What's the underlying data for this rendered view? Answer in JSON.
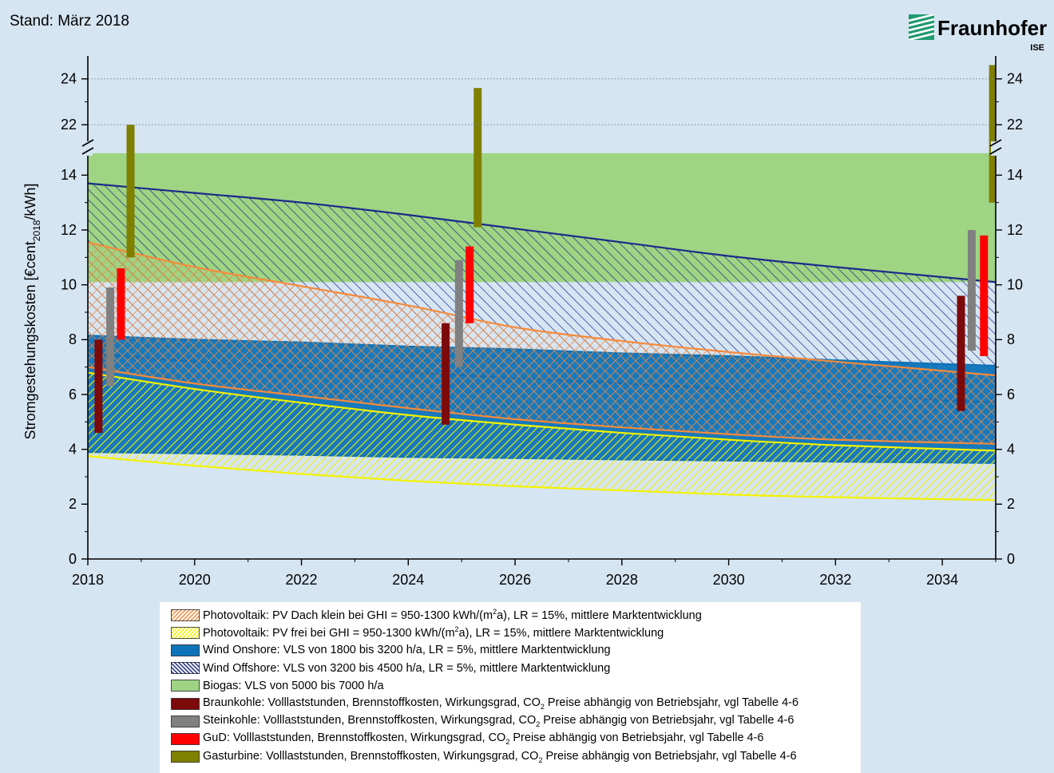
{
  "header": {
    "stand": "Stand: März 2018"
  },
  "logo": {
    "name": "Fraunhofer",
    "sub": "ISE"
  },
  "colors": {
    "background": "#d6e5f2",
    "pv_roof": "#f58a3a",
    "pv_free": "#f2f200",
    "wind_onshore": "#0e73b8",
    "wind_offshore": "#1c2a8a",
    "biogas": "#9fd483",
    "braunkohle": "#7d0a0a",
    "steinkohle": "#808080",
    "gud": "#ff0000",
    "gasturbine": "#7f7f00"
  },
  "chart_data": {
    "type": "area",
    "ylabel_main": "Stromgestehungskosten [€cent",
    "ylabel_sub": "2018",
    "ylabel_tail": "/kWh]",
    "xlim": [
      2018,
      2035
    ],
    "ylim_lower": [
      0,
      15
    ],
    "ylim_upper": [
      21,
      25
    ],
    "axis_break_between": [
      15,
      21
    ],
    "x_ticks": [
      "2018",
      "2020",
      "2022",
      "2024",
      "2026",
      "2028",
      "2030",
      "2032",
      "2034"
    ],
    "y_ticks": [
      "0",
      "2",
      "4",
      "6",
      "8",
      "10",
      "12",
      "14",
      "22",
      "24"
    ],
    "grid": "upper panel dotted only",
    "x": [
      2018,
      2020,
      2022,
      2024,
      2026,
      2028,
      2030,
      2032,
      2035
    ],
    "bands": [
      {
        "name": "biogas",
        "style": "solid",
        "low": [
          10.1,
          10.1,
          10.1,
          10.1,
          10.1,
          10.1,
          10.1,
          10.1,
          10.1
        ],
        "high": [
          14.8,
          14.8,
          14.8,
          14.8,
          14.8,
          14.8,
          14.8,
          14.8,
          14.8
        ]
      },
      {
        "name": "wind_offshore",
        "style": "hatch",
        "low": [
          7.5,
          7.2,
          7.0,
          6.8,
          6.6,
          6.4,
          6.2,
          6.0,
          5.7
        ],
        "high": [
          13.7,
          13.35,
          13.0,
          12.55,
          12.05,
          11.55,
          11.05,
          10.65,
          10.1
        ]
      },
      {
        "name": "wind_onshore",
        "style": "solid",
        "low": [
          3.9,
          3.85,
          3.8,
          3.72,
          3.68,
          3.63,
          3.59,
          3.55,
          3.5
        ],
        "high": [
          8.15,
          8.0,
          7.9,
          7.75,
          7.65,
          7.5,
          7.4,
          7.25,
          7.05
        ]
      },
      {
        "name": "pv_free",
        "style": "hatch",
        "low": [
          3.75,
          3.4,
          3.1,
          2.85,
          2.65,
          2.5,
          2.35,
          2.25,
          2.15
        ],
        "high": [
          6.8,
          6.2,
          5.7,
          5.25,
          4.9,
          4.6,
          4.35,
          4.15,
          3.95
        ]
      },
      {
        "name": "pv_roof",
        "style": "hatch",
        "low": [
          7.0,
          6.4,
          5.95,
          5.5,
          5.1,
          4.8,
          4.55,
          4.35,
          4.2
        ],
        "high": [
          11.55,
          10.65,
          9.95,
          9.25,
          8.45,
          7.95,
          7.55,
          7.2,
          6.7
        ]
      }
    ],
    "bars": [
      {
        "name": "braunkohle",
        "x": 2018.2,
        "low": 4.6,
        "high": 8.0
      },
      {
        "name": "steinkohle",
        "x": 2018.42,
        "low": 6.3,
        "high": 9.9
      },
      {
        "name": "gud",
        "x": 2018.62,
        "low": 8.0,
        "high": 10.6
      },
      {
        "name": "gasturbine",
        "x": 2018.8,
        "low": 11.0,
        "high": 22.0
      },
      {
        "name": "braunkohle",
        "x": 2024.7,
        "low": 4.9,
        "high": 8.6
      },
      {
        "name": "steinkohle",
        "x": 2024.95,
        "low": 7.0,
        "high": 10.9
      },
      {
        "name": "gud",
        "x": 2025.15,
        "low": 8.6,
        "high": 11.4
      },
      {
        "name": "gasturbine",
        "x": 2025.3,
        "low": 12.1,
        "high": 23.6
      },
      {
        "name": "braunkohle",
        "x": 2034.35,
        "low": 5.4,
        "high": 9.6
      },
      {
        "name": "steinkohle",
        "x": 2034.55,
        "low": 7.6,
        "high": 12.0
      },
      {
        "name": "gud",
        "x": 2034.78,
        "low": 7.4,
        "high": 11.8
      },
      {
        "name": "gasturbine",
        "x": 2034.95,
        "low": 13.0,
        "high": 24.6
      }
    ]
  },
  "legend": [
    {
      "key": "pv_roof",
      "swatch": "hatch",
      "parts": [
        "Photovoltaik: PV Dach klein bei GHI = 950-1300 kWh/(m",
        "2",
        "a), LR = 15%, mittlere Marktentwicklung"
      ],
      "subsup": "sup"
    },
    {
      "key": "pv_free",
      "swatch": "hatch",
      "parts": [
        "Photovoltaik: PV frei bei GHI = 950-1300 kWh/(m",
        "2",
        "a), LR = 15%, mittlere Marktentwicklung"
      ],
      "subsup": "sup"
    },
    {
      "key": "wind_onshore",
      "swatch": "solid",
      "parts": [
        "Wind Onshore: VLS von 1800 bis 3200 h/a, LR = 5%, mittlere Marktentwicklung"
      ]
    },
    {
      "key": "wind_offshore",
      "swatch": "hatch",
      "parts": [
        "Wind Offshore: VLS von 3200 bis 4500 h/a, LR = 5%, mittlere Marktentwicklung"
      ]
    },
    {
      "key": "biogas",
      "swatch": "solid",
      "parts": [
        "Biogas: VLS von 5000 bis 7000 h/a"
      ]
    },
    {
      "key": "braunkohle",
      "swatch": "solid",
      "parts": [
        "Braunkohle: Volllaststunden, Brennstoffkosten, Wirkungsgrad, CO",
        "2",
        " Preise abhängig von Betriebsjahr, vgl Tabelle 4-6"
      ],
      "subsup": "sub"
    },
    {
      "key": "steinkohle",
      "swatch": "solid",
      "parts": [
        "Steinkohle: Volllaststunden, Brennstoffkosten, Wirkungsgrad, CO",
        "2",
        " Preise abhängig von Betriebsjahr, vgl Tabelle 4-6"
      ],
      "subsup": "sub"
    },
    {
      "key": "gud",
      "swatch": "solid",
      "parts": [
        "GuD: Volllaststunden, Brennstoffkosten, Wirkungsgrad, CO",
        "2",
        " Preise abhängig von Betriebsjahr, vgl Tabelle 4-6"
      ],
      "subsup": "sub"
    },
    {
      "key": "gasturbine",
      "swatch": "solid",
      "parts": [
        "Gasturbine: Volllaststunden, Brennstoffkosten, Wirkungsgrad, CO",
        "2",
        " Preise abhängig von Betriebsjahr, vgl Tabelle 4-6"
      ],
      "subsup": "sub"
    }
  ]
}
